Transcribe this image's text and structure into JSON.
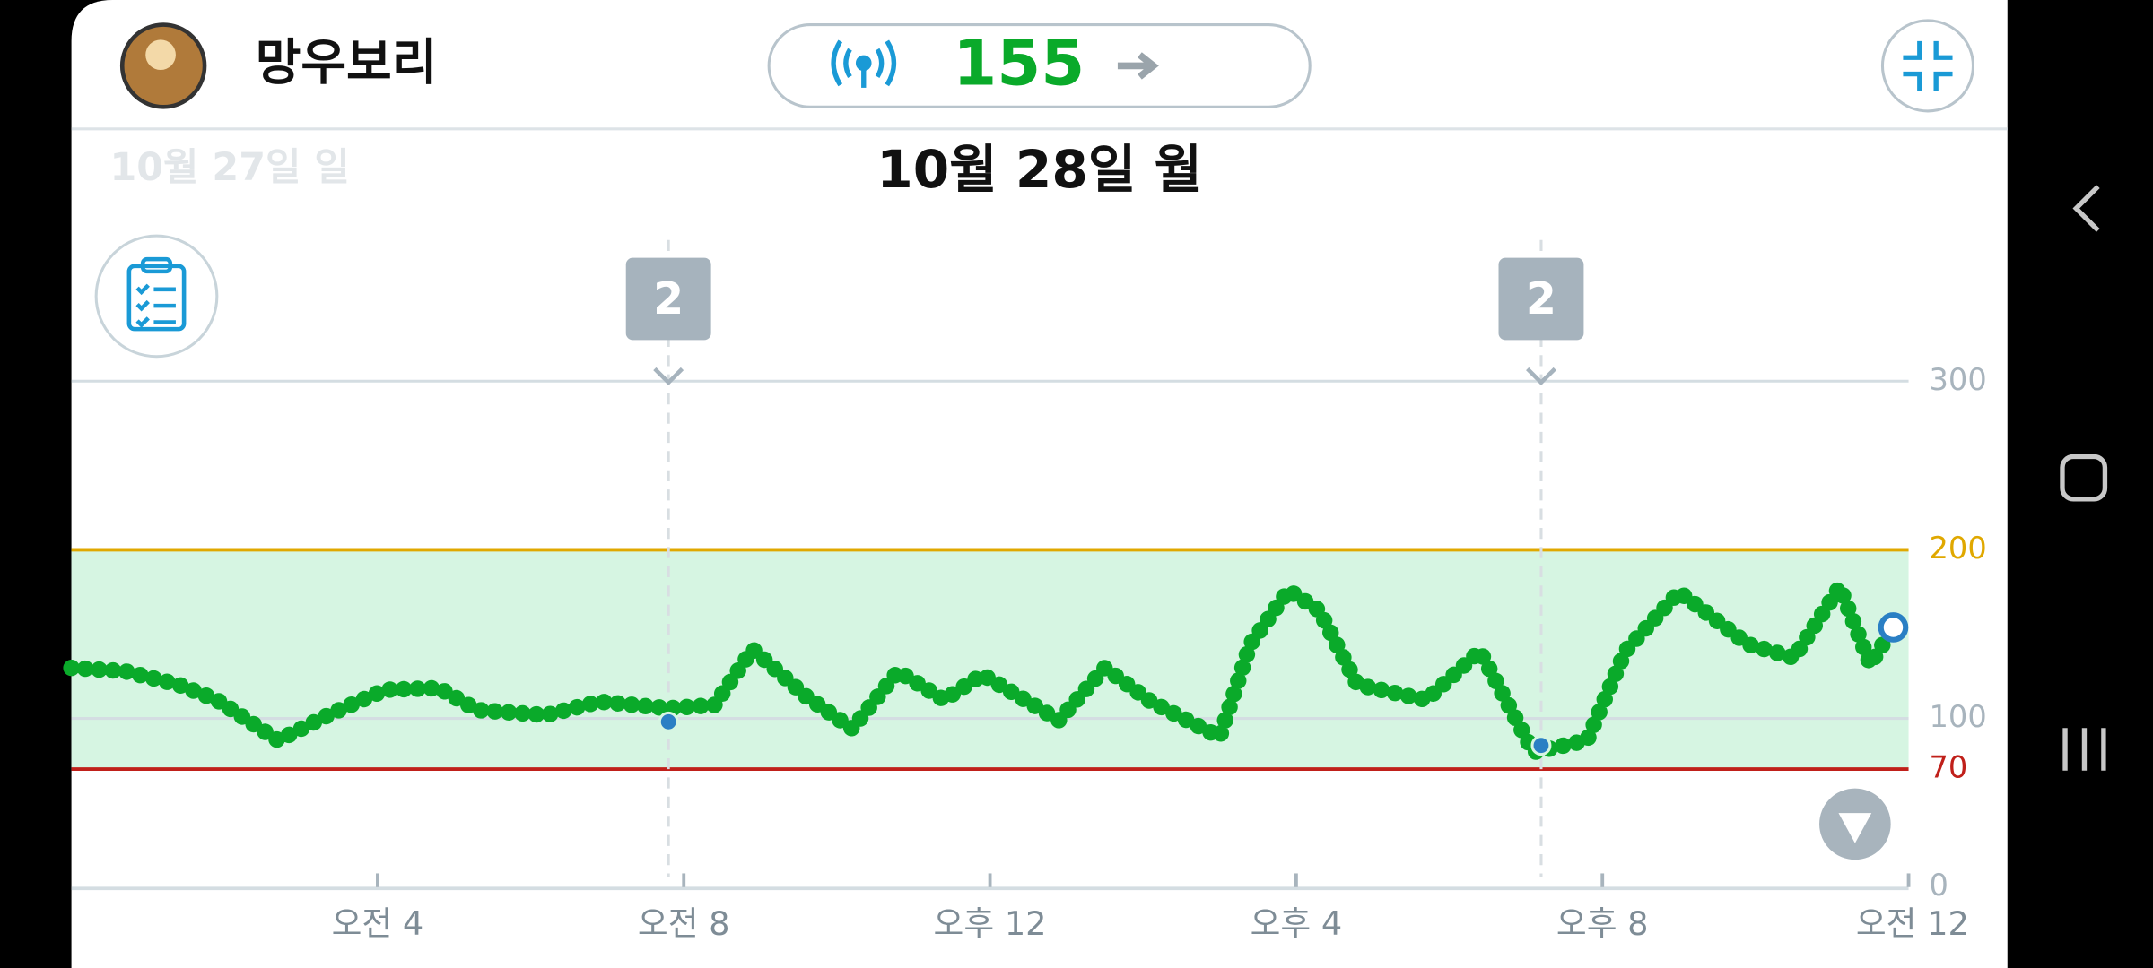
{
  "header": {
    "user": "망우보리",
    "current": 155,
    "date": "10월 28일 월",
    "prev_date": "10월 27일 일"
  },
  "chart_data": {
    "type": "line",
    "x": [
      0,
      0.7,
      1.4,
      1.9,
      2.7,
      3.4,
      4.1,
      4.8,
      5.3,
      6.2,
      6.9,
      7.8,
      8.4,
      8.9,
      9.6,
      10.2,
      10.8,
      11.4,
      11.9,
      12.9,
      13.5,
      14.1,
      15.0,
      15.4,
      15.9,
      16.3,
      16.8,
      17.7,
      18.4,
      19.1,
      19.8,
      20.3,
      21.0,
      21.9,
      22.5,
      23.1,
      23.5,
      23.8
    ],
    "series": [
      {
        "color": "#0aaa2a",
        "values": [
          130,
          128,
          120,
          111,
          87,
          103,
          117,
          118,
          105,
          102,
          110,
          106,
          108,
          141,
          113,
          94,
          128,
          111,
          126,
          99,
          130,
          110,
          89,
          144,
          176,
          164,
          120,
          111,
          140,
          80,
          87,
          140,
          175,
          144,
          136,
          178,
          132,
          154
        ]
      }
    ],
    "points": {
      "color": "#2a7fc4",
      "x": [
        7.8,
        19.2,
        23.8
      ],
      "values": [
        98,
        84,
        154
      ]
    },
    "events": [
      {
        "x": 7.8,
        "label": "2"
      },
      {
        "x": 19.2,
        "label": "2"
      }
    ],
    "xlim": [
      0,
      24
    ],
    "ylim": [
      0,
      300
    ],
    "xticks": [
      {
        "value": 4,
        "label": "오전 4"
      },
      {
        "value": 8,
        "label": "오전 8"
      },
      {
        "value": 12,
        "label": "오후 12"
      },
      {
        "value": 16,
        "label": "오후 4"
      },
      {
        "value": 20,
        "label": "오후 8"
      },
      {
        "value": 24,
        "label": "오전 12"
      }
    ],
    "yticks": [
      300,
      200,
      100,
      70,
      0
    ],
    "ytick_colors": [
      "#a8b4bd",
      "#e0a800",
      "#a8b4bd",
      "#c0201a",
      "#a8b4bd"
    ],
    "target_range": [
      70,
      200
    ],
    "range_color": "#d6f5e2"
  }
}
